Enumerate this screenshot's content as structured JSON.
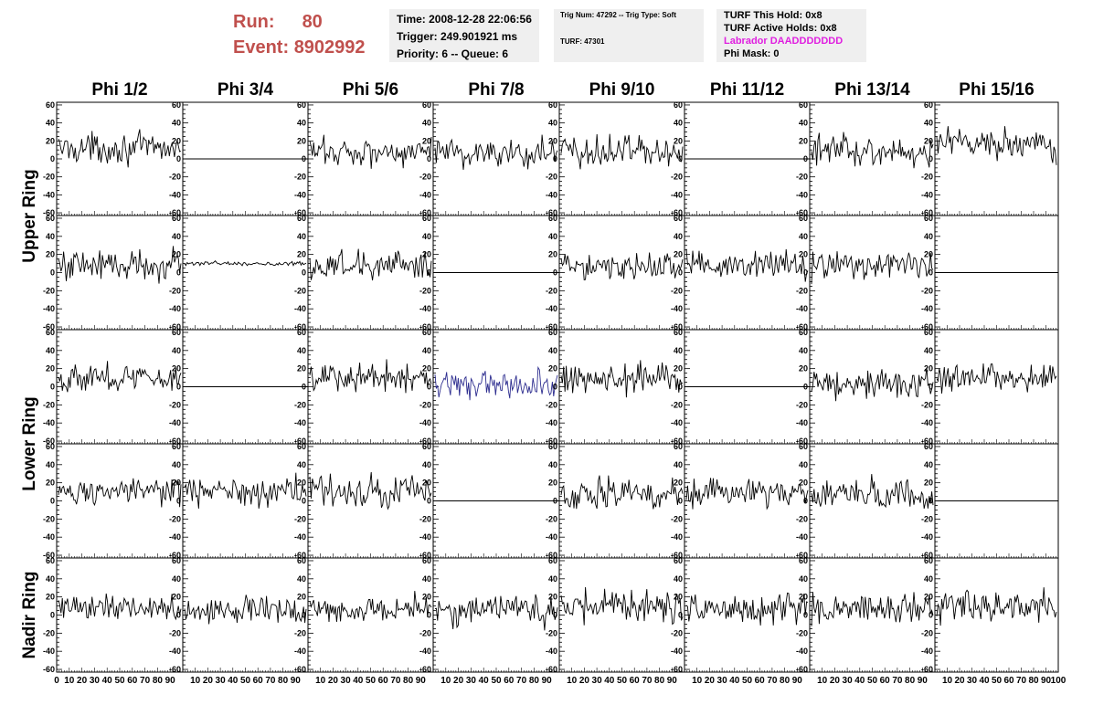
{
  "header": {
    "run_label": "Run:",
    "run_value": "80",
    "event_label": "Event:",
    "event_value": "8902992",
    "time": "Time: 2008-12-28 22:06:56",
    "trigger": "Trigger: 249.901921 ms",
    "priority": "Priority: 6 -- Queue: 6",
    "trig_num": "Trig Num: 47292 -- Trig Type: Soft",
    "turf_id": "TURF: 47301",
    "turf_this_hold": "TURF This Hold: 0x8",
    "turf_active_holds": "TURF Active Holds: 0x8",
    "labrador": "Labrador DAADDDDDDD",
    "phi_mask": "Phi Mask: 0"
  },
  "colors": {
    "header_red": "#c0504d",
    "info_bg": "#efefef",
    "labrador_magenta": "#e020e0",
    "trace_black": "#000000",
    "trace_blue": "#2d2d8f"
  },
  "chart_data": {
    "type": "line",
    "columns": [
      "Phi 1/2",
      "Phi 3/4",
      "Phi 5/6",
      "Phi 7/8",
      "Phi 9/10",
      "Phi 11/12",
      "Phi 13/14",
      "Phi 15/16"
    ],
    "ring_labels": [
      "Upper Ring",
      "Lower Ring",
      "Nadir Ring"
    ],
    "rows": 5,
    "ylim": [
      -63,
      63
    ],
    "yticks": [
      -60,
      -40,
      -20,
      0,
      20,
      40,
      60
    ],
    "xlim": [
      0,
      100
    ],
    "xtick_labels": [
      "0",
      "10",
      "20",
      "30",
      "40",
      "50",
      "60",
      "70",
      "80",
      "90",
      "100"
    ],
    "samples": 96,
    "panels": [
      [
        {
          "baseline": 12,
          "amplitude": 14
        },
        {
          "flat": true,
          "baseline": 0
        },
        {
          "baseline": 8,
          "amplitude": 14
        },
        {
          "baseline": 7,
          "amplitude": 16
        },
        {
          "baseline": 9,
          "amplitude": 17
        },
        {
          "flat": true,
          "baseline": 0
        },
        {
          "baseline": 9,
          "amplitude": 14
        },
        {
          "baseline": 16,
          "amplitude": 14
        }
      ],
      [
        {
          "baseline": 9,
          "amplitude": 15
        },
        {
          "baseline": 10,
          "amplitude": 2
        },
        {
          "baseline": 8,
          "amplitude": 15
        },
        {
          "flat": true,
          "baseline": 0
        },
        {
          "baseline": 7,
          "amplitude": 13
        },
        {
          "baseline": 8,
          "amplitude": 14
        },
        {
          "baseline": 7,
          "amplitude": 13
        },
        {
          "flat": true,
          "baseline": 0
        }
      ],
      [
        {
          "baseline": 10,
          "amplitude": 14
        },
        {
          "flat": true,
          "baseline": 0
        },
        {
          "baseline": 10,
          "amplitude": 14
        },
        {
          "baseline": 2,
          "amplitude": 14,
          "highlight": true
        },
        {
          "baseline": 8,
          "amplitude": 14
        },
        {
          "flat": true,
          "baseline": 0
        },
        {
          "baseline": 5,
          "amplitude": 14
        },
        {
          "baseline": 10,
          "amplitude": 14
        }
      ],
      [
        {
          "baseline": 10,
          "amplitude": 12
        },
        {
          "baseline": 10,
          "amplitude": 15
        },
        {
          "baseline": 12,
          "amplitude": 15
        },
        {
          "flat": true,
          "baseline": 0
        },
        {
          "baseline": 7,
          "amplitude": 15
        },
        {
          "baseline": 9,
          "amplitude": 15
        },
        {
          "baseline": 7,
          "amplitude": 14
        },
        {
          "flat": true,
          "baseline": 0
        }
      ],
      [
        {
          "baseline": 9,
          "amplitude": 14
        },
        {
          "baseline": 7,
          "amplitude": 12
        },
        {
          "baseline": 7,
          "amplitude": 13
        },
        {
          "baseline": 5,
          "amplitude": 14
        },
        {
          "baseline": 10,
          "amplitude": 15
        },
        {
          "baseline": 7,
          "amplitude": 14
        },
        {
          "baseline": 7,
          "amplitude": 14
        },
        {
          "baseline": 9,
          "amplitude": 14
        }
      ]
    ]
  }
}
